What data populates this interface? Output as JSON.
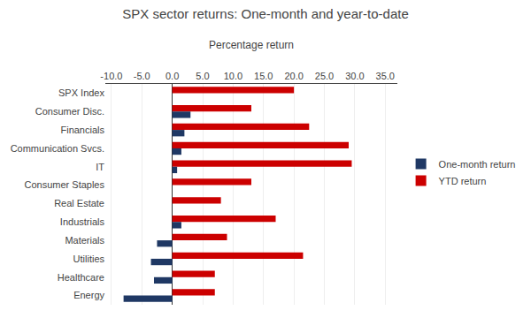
{
  "chart_data": {
    "type": "bar",
    "orientation": "horizontal",
    "title": "SPX sector returns: One-month and year-to-date",
    "xlabel": "Percentage return",
    "categories": [
      "SPX Index",
      "Consumer Disc.",
      "Financials",
      "Communication Svcs.",
      "IT",
      "Consumer Staples",
      "Real Estate",
      "Industrials",
      "Materials",
      "Utilities",
      "Healthcare",
      "Energy"
    ],
    "series": [
      {
        "name": "One-month return",
        "color": "#1f3864",
        "values": [
          0.0,
          3.0,
          2.0,
          1.5,
          0.8,
          0.0,
          0.0,
          1.5,
          -2.5,
          -3.5,
          -3.0,
          -8.0
        ]
      },
      {
        "name": "YTD return",
        "color": "#cc0000",
        "values": [
          20.0,
          13.0,
          22.5,
          29.0,
          29.5,
          13.0,
          8.0,
          17.0,
          9.0,
          21.5,
          7.0,
          7.0
        ]
      }
    ],
    "xlim": [
      -11.0,
      37.0
    ],
    "xticks": [
      {
        "value": -10.0,
        "label": "-10.0"
      },
      {
        "value": -5.0,
        "label": "-5.0"
      },
      {
        "value": 0.0,
        "label": "0.0"
      },
      {
        "value": 5.0,
        "label": "5.0"
      },
      {
        "value": 10.0,
        "label": "10.0"
      },
      {
        "value": 15.0,
        "label": "15.0"
      },
      {
        "value": 20.0,
        "label": "20.0"
      },
      {
        "value": 25.0,
        "label": "25.0"
      },
      {
        "value": 30.0,
        "label": "30.0"
      },
      {
        "value": 35.0,
        "label": "35.0"
      }
    ],
    "grid": true,
    "legend": "right"
  }
}
